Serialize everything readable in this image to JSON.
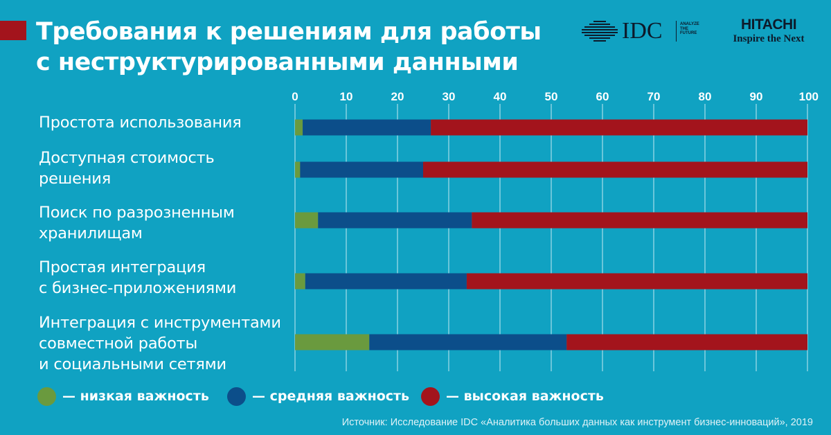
{
  "title_lines": [
    "Требования к решениям для работы",
    "с неструктурированными данными"
  ],
  "logos": {
    "idc": {
      "name": "IDC",
      "tagline": [
        "ANALYZE",
        "THE",
        "FUTURE"
      ]
    },
    "hitachi": {
      "name": "HITACHI",
      "slogan": "Inspire the Next"
    }
  },
  "colors": {
    "background": "#10a2c2",
    "accent": "#a3141c",
    "low": "#6a9a3e",
    "medium": "#0c4e8a",
    "high": "#a3141c"
  },
  "legend": [
    {
      "key": "low",
      "label": "— низкая важность"
    },
    {
      "key": "medium",
      "label": "— средняя важность"
    },
    {
      "key": "high",
      "label": "— высокая важность"
    }
  ],
  "source": "Источник: Исследование IDC «Аналитика больших данных как инструмент бизнес-инноваций», 2019",
  "chart_data": {
    "type": "bar",
    "orientation": "horizontal",
    "stacked": true,
    "xlim": [
      0,
      100
    ],
    "ticks": [
      0,
      10,
      20,
      30,
      40,
      50,
      60,
      70,
      80,
      90,
      100
    ],
    "grid": true,
    "legend_position": "bottom",
    "categories": [
      [
        "Простота использования"
      ],
      [
        "Доступная стоимость",
        "решения"
      ],
      [
        "Поиск по разрозненным",
        "хранилищам"
      ],
      [
        "Простая интеграция",
        "с бизнес-приложениями"
      ],
      [
        "Интеграция с инструментами",
        "совместной работы",
        "и социальными сетями"
      ]
    ],
    "series": [
      {
        "name": "низкая важность",
        "key": "low",
        "values": [
          1.5,
          1,
          4.5,
          2,
          14.5
        ]
      },
      {
        "name": "средняя важность",
        "key": "medium",
        "values": [
          25,
          24,
          30,
          31.5,
          38.5
        ]
      },
      {
        "name": "высокая важность",
        "key": "high",
        "values": [
          73.5,
          75,
          65.5,
          66.5,
          47
        ]
      }
    ]
  }
}
